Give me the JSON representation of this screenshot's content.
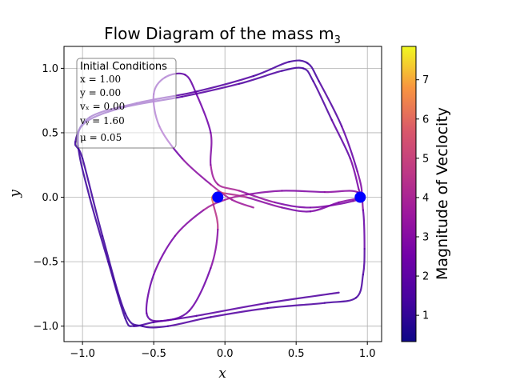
{
  "chart_data": {
    "type": "line",
    "title": "Flow Diagram of the mass m",
    "title_subscript": "3",
    "xlabel": "x",
    "ylabel": "y",
    "xlim": [
      -1.13,
      1.1
    ],
    "ylim": [
      -1.12,
      1.17
    ],
    "xticks": [
      -1.0,
      -0.5,
      0.0,
      0.5,
      1.0
    ],
    "xtick_labels": [
      "−1.0",
      "−0.5",
      "0.0",
      "0.5",
      "1.0"
    ],
    "yticks": [
      -1.0,
      -0.5,
      0.0,
      0.5,
      1.0
    ],
    "ytick_labels": [
      "−1.0",
      "−0.5",
      "0.0",
      "0.5",
      "1.0"
    ],
    "grid": true,
    "colormap": "plasma",
    "colorbar": {
      "label": "Magnitude of Veclocity",
      "range": [
        0.33,
        7.85
      ],
      "ticks": [
        1,
        2,
        3,
        4,
        5,
        6,
        7
      ],
      "tick_labels": [
        "1",
        "2",
        "3",
        "4",
        "5",
        "6",
        "7"
      ]
    },
    "primaries": [
      {
        "x": -0.05,
        "y": 0.0,
        "color": "#0000ff"
      },
      {
        "x": 0.95,
        "y": 0.0,
        "color": "#0000ff"
      }
    ],
    "legend": {
      "placement": "upper-left",
      "title": "Initial Conditions",
      "lines": [
        "x = 1.00",
        "y = 0.00",
        "vₓ = 0.00",
        "vᵧ = 1.60",
        "μ = 0.05"
      ]
    },
    "trajectory": [
      {
        "x": 0.8,
        "y": -0.74,
        "v": 1.6
      },
      {
        "x": 0.3,
        "y": -0.82,
        "v": 1.8
      },
      {
        "x": -0.2,
        "y": -0.92,
        "v": 2.0
      },
      {
        "x": -0.5,
        "y": -0.97,
        "v": 1.8
      },
      {
        "x": -0.64,
        "y": -1.0,
        "v": 1.3
      },
      {
        "x": -0.7,
        "y": -0.94,
        "v": 1.2
      },
      {
        "x": -0.82,
        "y": -0.5,
        "v": 1.3
      },
      {
        "x": -0.95,
        "y": 0.0,
        "v": 1.3
      },
      {
        "x": -1.03,
        "y": 0.4,
        "v": 1.2
      },
      {
        "x": -0.98,
        "y": 0.58,
        "v": 1.4
      },
      {
        "x": -0.7,
        "y": 0.7,
        "v": 1.8
      },
      {
        "x": -0.3,
        "y": 0.78,
        "v": 1.9
      },
      {
        "x": 0.1,
        "y": 0.88,
        "v": 1.8
      },
      {
        "x": 0.4,
        "y": 0.98,
        "v": 1.5
      },
      {
        "x": 0.55,
        "y": 1.0,
        "v": 1.3
      },
      {
        "x": 0.62,
        "y": 0.9,
        "v": 1.5
      },
      {
        "x": 0.75,
        "y": 0.6,
        "v": 1.8
      },
      {
        "x": 0.88,
        "y": 0.3,
        "v": 2.3
      },
      {
        "x": 0.94,
        "y": 0.06,
        "v": 3.0
      },
      {
        "x": 0.95,
        "y": 0.0,
        "v": 3.3
      },
      {
        "x": 0.8,
        "y": -0.04,
        "v": 3.0
      },
      {
        "x": 0.6,
        "y": -0.11,
        "v": 2.6
      },
      {
        "x": 0.4,
        "y": -0.08,
        "v": 2.7
      },
      {
        "x": 0.15,
        "y": 0.0,
        "v": 3.5
      },
      {
        "x": 0.0,
        "y": 0.03,
        "v": 5.0
      },
      {
        "x": -0.05,
        "y": 0.04,
        "v": 6.5
      },
      {
        "x": -0.09,
        "y": 0.0,
        "v": 6.8
      },
      {
        "x": -0.08,
        "y": -0.06,
        "v": 5.5
      },
      {
        "x": -0.05,
        "y": -0.25,
        "v": 3.5
      },
      {
        "x": -0.1,
        "y": -0.55,
        "v": 2.6
      },
      {
        "x": -0.25,
        "y": -0.88,
        "v": 2.2
      },
      {
        "x": -0.45,
        "y": -0.96,
        "v": 2.0
      },
      {
        "x": -0.55,
        "y": -0.9,
        "v": 2.1
      },
      {
        "x": -0.5,
        "y": -0.6,
        "v": 2.4
      },
      {
        "x": -0.35,
        "y": -0.3,
        "v": 2.7
      },
      {
        "x": -0.15,
        "y": -0.1,
        "v": 3.2
      },
      {
        "x": 0.0,
        "y": -0.02,
        "v": 4.5
      },
      {
        "x": 0.15,
        "y": 0.02,
        "v": 3.2
      },
      {
        "x": 0.4,
        "y": 0.05,
        "v": 2.8
      },
      {
        "x": 0.7,
        "y": 0.04,
        "v": 2.9
      },
      {
        "x": 0.93,
        "y": 0.04,
        "v": 3.4
      },
      {
        "x": 0.97,
        "y": -0.1,
        "v": 2.6
      },
      {
        "x": 0.98,
        "y": -0.4,
        "v": 1.8
      },
      {
        "x": 0.97,
        "y": -0.6,
        "v": 1.6
      },
      {
        "x": 0.92,
        "y": -0.78,
        "v": 1.4
      },
      {
        "x": 0.7,
        "y": -0.82,
        "v": 1.5
      },
      {
        "x": 0.3,
        "y": -0.86,
        "v": 1.7
      },
      {
        "x": -0.1,
        "y": -0.93,
        "v": 1.8
      },
      {
        "x": -0.4,
        "y": -1.0,
        "v": 1.6
      },
      {
        "x": -0.58,
        "y": -1.0,
        "v": 1.3
      },
      {
        "x": -0.7,
        "y": -0.9,
        "v": 1.2
      },
      {
        "x": -0.86,
        "y": -0.3,
        "v": 1.3
      },
      {
        "x": -1.0,
        "y": 0.3,
        "v": 1.3
      },
      {
        "x": -1.05,
        "y": 0.43,
        "v": 1.2
      },
      {
        "x": -0.95,
        "y": 0.62,
        "v": 1.5
      },
      {
        "x": -0.62,
        "y": 0.73,
        "v": 1.9
      },
      {
        "x": -0.2,
        "y": 0.82,
        "v": 1.9
      },
      {
        "x": 0.2,
        "y": 0.94,
        "v": 1.6
      },
      {
        "x": 0.45,
        "y": 1.05,
        "v": 1.4
      },
      {
        "x": 0.58,
        "y": 1.04,
        "v": 1.3
      },
      {
        "x": 0.66,
        "y": 0.9,
        "v": 1.5
      },
      {
        "x": 0.82,
        "y": 0.55,
        "v": 1.9
      },
      {
        "x": 0.93,
        "y": 0.2,
        "v": 2.5
      },
      {
        "x": 0.96,
        "y": 0.02,
        "v": 3.1
      },
      {
        "x": 0.9,
        "y": -0.03,
        "v": 3.0
      },
      {
        "x": 0.6,
        "y": -0.08,
        "v": 2.5
      },
      {
        "x": 0.35,
        "y": -0.04,
        "v": 2.9
      },
      {
        "x": 0.1,
        "y": 0.05,
        "v": 3.8
      },
      {
        "x": -0.05,
        "y": 0.1,
        "v": 4.2
      },
      {
        "x": -0.1,
        "y": 0.25,
        "v": 3.2
      },
      {
        "x": -0.1,
        "y": 0.5,
        "v": 2.6
      },
      {
        "x": -0.2,
        "y": 0.8,
        "v": 2.3
      },
      {
        "x": -0.28,
        "y": 0.95,
        "v": 2.1
      },
      {
        "x": -0.42,
        "y": 0.93,
        "v": 2.0
      },
      {
        "x": -0.5,
        "y": 0.8,
        "v": 2.1
      },
      {
        "x": -0.46,
        "y": 0.55,
        "v": 2.3
      },
      {
        "x": -0.3,
        "y": 0.3,
        "v": 2.6
      },
      {
        "x": -0.1,
        "y": 0.1,
        "v": 3.6
      },
      {
        "x": 0.05,
        "y": -0.02,
        "v": 4.3
      },
      {
        "x": 0.2,
        "y": -0.08,
        "v": 3.0
      }
    ]
  }
}
